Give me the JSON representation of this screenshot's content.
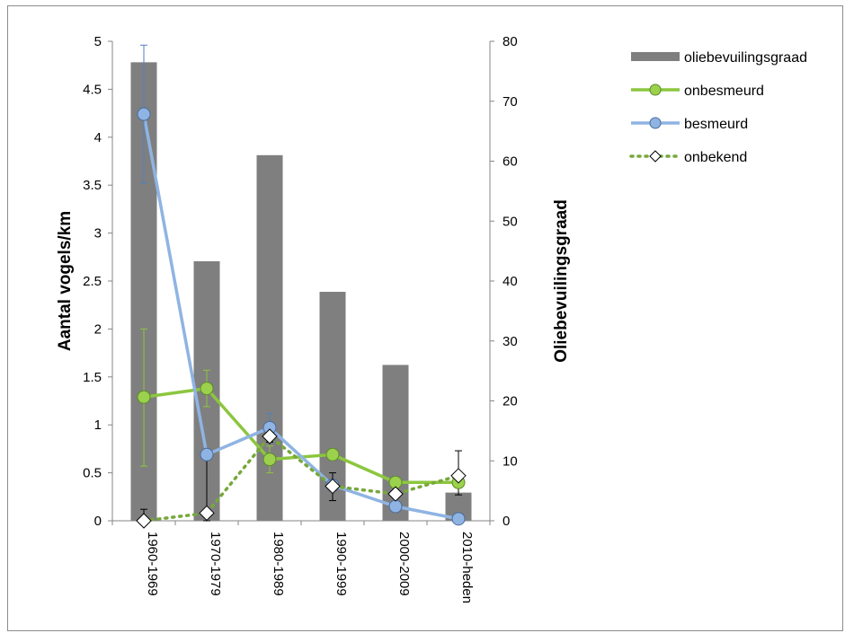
{
  "chart_data": {
    "type": "bar",
    "categories": [
      "1960-1969",
      "1970-1979",
      "1980-1989",
      "1990-1999",
      "2000-2009",
      "2010-heden"
    ],
    "ylabel": "Aantal vogels/km",
    "y2label": "Oliebevuilingsgraad",
    "ylim": [
      0,
      5
    ],
    "y2lim": [
      0,
      80
    ],
    "yticks": [
      "0",
      "0.5",
      "1",
      "1.5",
      "2",
      "2.5",
      "3",
      "3.5",
      "4",
      "4.5",
      "5"
    ],
    "y2ticks": [
      "0",
      "10",
      "20",
      "30",
      "40",
      "50",
      "60",
      "70",
      "80"
    ],
    "legend_position": "top-right",
    "grid": false,
    "series": [
      {
        "name": "oliebevuilingsgraad",
        "kind": "bar",
        "axis": "right",
        "color": "#7f7f7f",
        "values": [
          76.5,
          43.3,
          61,
          38.2,
          26,
          4.7
        ]
      },
      {
        "name": "onbesmeurd",
        "kind": "line",
        "axis": "left",
        "color": "#8cc63f",
        "marker": "circle",
        "marker_fill": "#9bd14c",
        "values": [
          1.29,
          1.38,
          0.64,
          0.69,
          0.4,
          0.4
        ],
        "error_low": [
          0.57,
          1.19,
          0.5,
          null,
          null,
          0.36
        ],
        "error_high": [
          2.0,
          1.57,
          0.78,
          null,
          null,
          0.44
        ]
      },
      {
        "name": "besmeurd",
        "kind": "line",
        "axis": "left",
        "color": "#8fb4e3",
        "marker": "circle",
        "marker_fill": "#8fb4e3",
        "values": [
          4.24,
          0.69,
          0.97,
          0.37,
          0.15,
          0.02
        ],
        "error_low": [
          3.52,
          null,
          0.82,
          null,
          null,
          null
        ],
        "error_high": [
          4.96,
          null,
          1.12,
          null,
          null,
          null
        ]
      },
      {
        "name": "onbekend",
        "kind": "line",
        "axis": "left",
        "color": "#77a83a",
        "dash": "dotted",
        "marker": "diamond",
        "marker_fill": "#ffffff",
        "values": [
          0.0,
          0.08,
          0.88,
          0.36,
          0.28,
          0.47
        ],
        "error_low": [
          null,
          0.0,
          0.82,
          0.21,
          null,
          0.27
        ],
        "error_high": [
          0.12,
          0.69,
          0.94,
          0.5,
          null,
          0.73
        ]
      }
    ]
  }
}
